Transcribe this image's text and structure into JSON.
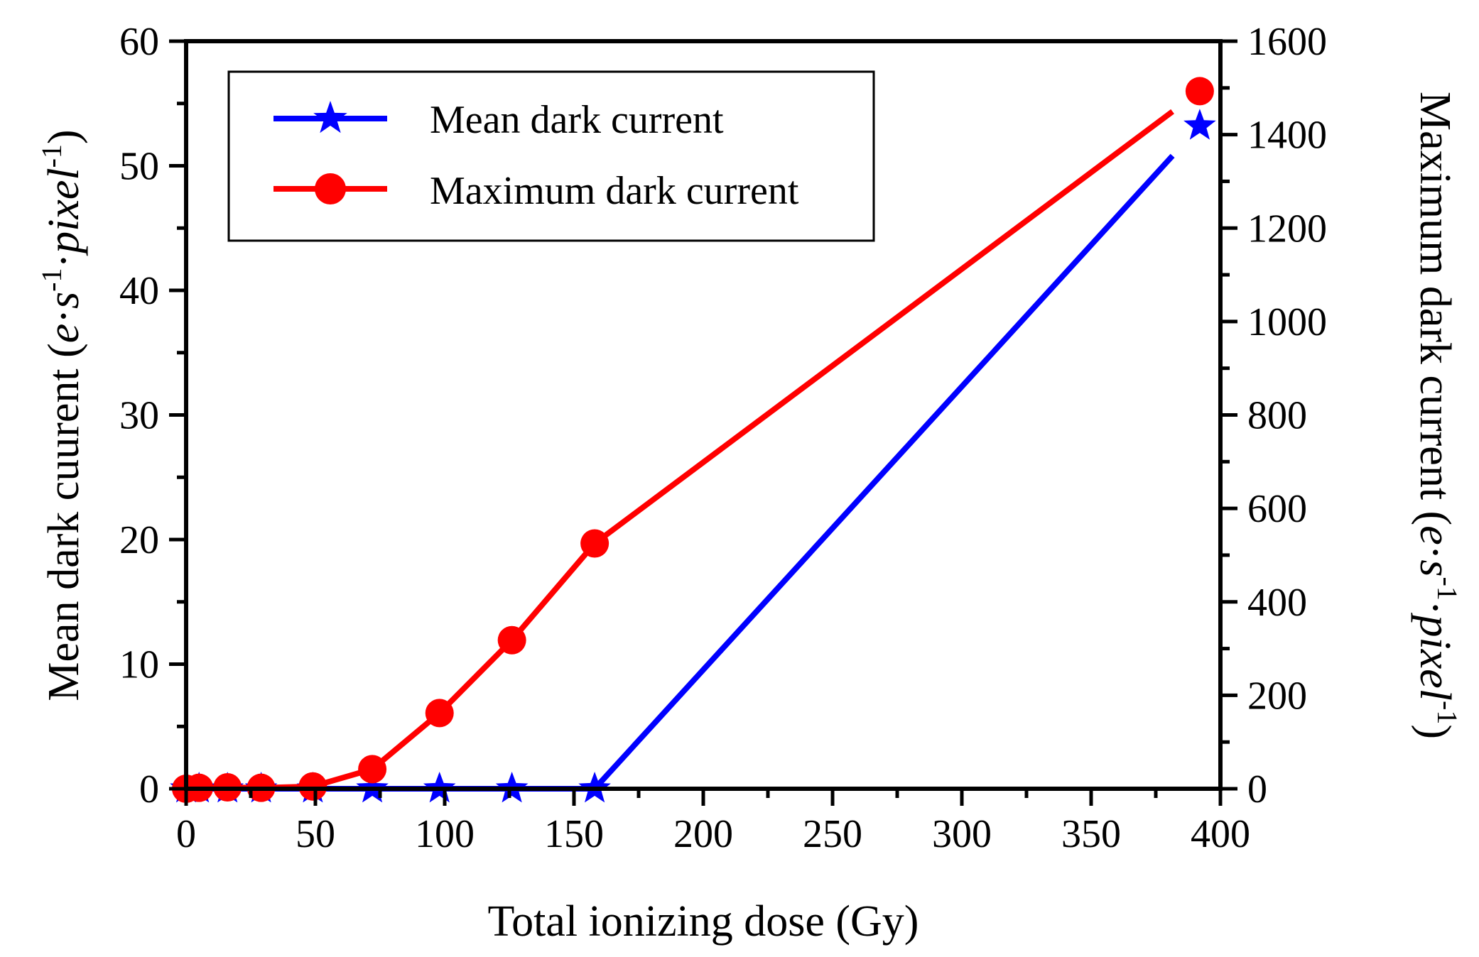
{
  "chart_data": {
    "type": "line",
    "xlabel": "Total ionizing dose (Gy)",
    "ylabel_left": {
      "prefix": "Mean dark cuurent (",
      "e": "e",
      "dot1": "·",
      "s": "s",
      "exp1": "-1",
      "dot2": "·",
      "pixel": "pixel",
      "exp2": "-1",
      "suffix": ")"
    },
    "ylabel_right": {
      "prefix": "Maximum dark current (",
      "e": "e",
      "dot1": "·",
      "s": "s",
      "exp1": "-1",
      "dot2": "·",
      "pixel": "pixel",
      "exp2": "-1",
      "suffix": ")"
    },
    "xlim": [
      0,
      400
    ],
    "ylim_left": [
      0,
      60
    ],
    "ylim_right": [
      0,
      1600
    ],
    "xticks": [
      "0",
      "50",
      "100",
      "150",
      "200",
      "250",
      "300",
      "350",
      "400"
    ],
    "yticks_left": [
      "0",
      "10",
      "20",
      "30",
      "40",
      "50",
      "60"
    ],
    "yticks_right": [
      "0",
      "200",
      "400",
      "600",
      "800",
      "1000",
      "1200",
      "1400",
      "1600"
    ],
    "legend": {
      "placement": "top-left",
      "entries": [
        "Mean dark current",
        "Maximum dark current"
      ]
    },
    "series": [
      {
        "name": "Mean dark current",
        "axis": "left",
        "color": "#0000ff",
        "marker": "star",
        "x": [
          0,
          5,
          16,
          29,
          49,
          72,
          98,
          126,
          158,
          392
        ],
        "y": [
          0,
          0,
          0,
          0,
          0,
          0,
          0,
          0,
          0,
          53.2
        ]
      },
      {
        "name": "Maximum dark current",
        "axis": "right",
        "color": "#ff0000",
        "marker": "circle",
        "x": [
          0,
          5,
          16,
          29,
          49,
          72,
          98,
          126,
          158,
          392
        ],
        "y": [
          0,
          2,
          3,
          2,
          5,
          42,
          162,
          318,
          525,
          1493
        ]
      }
    ]
  }
}
